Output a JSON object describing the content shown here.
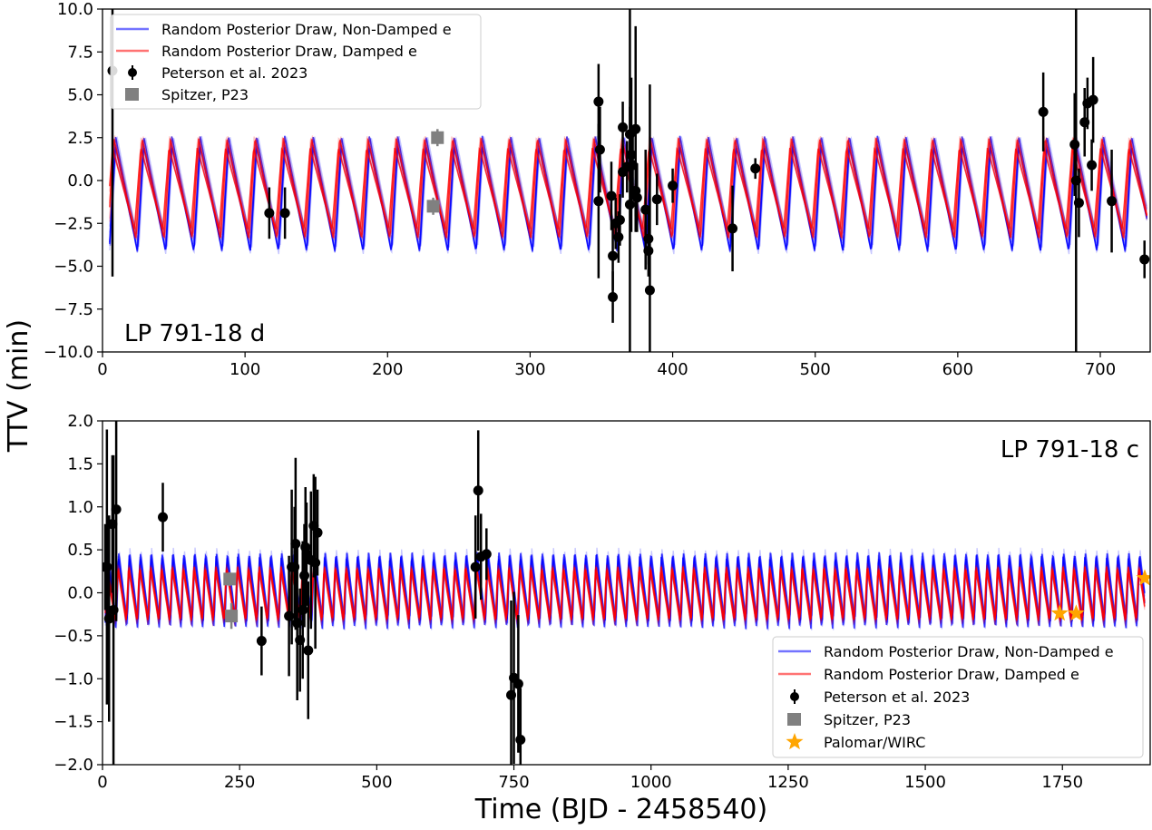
{
  "figure": {
    "ylabel": "TTV (min)",
    "xlabel": "Time (BJD - 2458540)"
  },
  "chart_data": [
    {
      "type": "scatter",
      "title": "LP 791-18 d",
      "xlabel": "",
      "ylabel": "TTV (min)",
      "xlim": [
        0,
        735
      ],
      "ylim": [
        -10,
        10
      ],
      "xticks": [
        0,
        100,
        200,
        300,
        400,
        500,
        600,
        700
      ],
      "yticks": [
        -10.0,
        -7.5,
        -5.0,
        -2.5,
        0.0,
        2.5,
        5.0,
        7.5,
        10.0
      ],
      "legend_position": "top-left",
      "legend": [
        {
          "label": "Random Posterior Draw, Non-Damped e",
          "kind": "line",
          "color": "#0000ff"
        },
        {
          "label": "Random Posterior Draw, Damped e",
          "kind": "line",
          "color": "#ff0000"
        },
        {
          "label": "Peterson et al. 2023",
          "kind": "errorbar",
          "color": "#000000"
        },
        {
          "label": "Spitzer, P23",
          "kind": "square",
          "color": "#808080"
        }
      ],
      "model": {
        "period": 19.8,
        "start": 5,
        "end": 733,
        "nondamped_amplitude": 2.9,
        "nondamped_offset": -0.9,
        "damped_amplitude": 2.6,
        "damped_offset": -0.4
      },
      "series": [
        {
          "name": "Peterson et al. 2023",
          "color": "#000000",
          "points": [
            [
              7,
              6.4,
              12
            ],
            [
              117,
              -1.9,
              1.5
            ],
            [
              128,
              -1.9,
              1.5
            ],
            [
              348,
              4.6,
              2.2
            ],
            [
              348,
              -1.2,
              4.5
            ],
            [
              349,
              1.8,
              2.5
            ],
            [
              357,
              -0.9,
              2.0
            ],
            [
              358,
              -4.4,
              2.0
            ],
            [
              358,
              -6.8,
              1.5
            ],
            [
              360,
              -2.5,
              1.5
            ],
            [
              362,
              -3.3,
              1.5
            ],
            [
              363,
              -2.3,
              1.5
            ],
            [
              365,
              3.1,
              1.5
            ],
            [
              365,
              0.5,
              1.5
            ],
            [
              368,
              0.8,
              1.5
            ],
            [
              370,
              2.7,
              1.6
            ],
            [
              370,
              -1.4,
              12
            ],
            [
              371,
              1.5,
              4.5
            ],
            [
              372,
              0.9,
              2.0
            ],
            [
              374,
              -0.6,
              1.5
            ],
            [
              374,
              3.0,
              6.0
            ],
            [
              375,
              -1.0,
              2.0
            ],
            [
              381,
              -1.7,
              3.5
            ],
            [
              383,
              -3.4,
              1.5
            ],
            [
              383,
              -4.1,
              1.5
            ],
            [
              384,
              -6.4,
              12
            ],
            [
              389,
              -1.1,
              1.5
            ],
            [
              400,
              -0.3,
              1.0
            ],
            [
              442,
              -2.8,
              2.5
            ],
            [
              458,
              0.7,
              0.6
            ],
            [
              660,
              4.0,
              2.3
            ],
            [
              682,
              2.1,
              3.0
            ],
            [
              683,
              0.0,
              12
            ],
            [
              685,
              -1.3,
              2.0
            ],
            [
              689,
              3.4,
              2.0
            ],
            [
              691,
              4.5,
              1.5
            ],
            [
              694,
              0.9,
              1.5
            ],
            [
              695,
              4.7,
              2.5
            ],
            [
              708,
              -1.2,
              3.0
            ],
            [
              731,
              -4.6,
              1.1
            ]
          ]
        },
        {
          "name": "Spitzer, P23",
          "color": "#808080",
          "points": [
            [
              232,
              -1.5,
              0.5
            ],
            [
              235,
              2.5,
              0.5
            ]
          ]
        }
      ]
    },
    {
      "type": "scatter",
      "title": "LP 791-18 c",
      "xlabel": "Time (BJD - 2458540)",
      "ylabel": "TTV (min)",
      "xlim": [
        0,
        1910
      ],
      "ylim": [
        -2.0,
        2.0
      ],
      "xticks": [
        0,
        250,
        500,
        750,
        1000,
        1250,
        1500,
        1750
      ],
      "yticks": [
        -2.0,
        -1.5,
        -1.0,
        -0.5,
        0.0,
        0.5,
        1.0,
        1.5,
        2.0
      ],
      "legend_position": "bottom-right",
      "legend": [
        {
          "label": "Random Posterior Draw, Non-Damped e",
          "kind": "line",
          "color": "#0000ff"
        },
        {
          "label": "Random Posterior Draw, Damped e",
          "kind": "line",
          "color": "#ff0000"
        },
        {
          "label": "Peterson et al. 2023",
          "kind": "errorbar",
          "color": "#000000"
        },
        {
          "label": "Spitzer, P23",
          "kind": "square",
          "color": "#808080"
        },
        {
          "label": "Palomar/WIRC",
          "kind": "star",
          "color": "#ffa500"
        }
      ],
      "model": {
        "period": 19.8,
        "start": 5,
        "end": 1900,
        "nondamped_amplitude": 0.42,
        "nondamped_offset": 0.05,
        "damped_amplitude": 0.3,
        "damped_offset": -0.02
      },
      "series": [
        {
          "name": "Peterson et al. 2023",
          "color": "#000000",
          "points": [
            [
              5,
              0.3,
              0.5
            ],
            [
              8,
              0.3,
              1.6
            ],
            [
              12,
              -0.3,
              1.2
            ],
            [
              18,
              0.8,
              0.8
            ],
            [
              20,
              -0.2,
              1.8
            ],
            [
              25,
              0.97,
              1.3
            ],
            [
              110,
              0.88,
              0.4
            ],
            [
              290,
              -0.56,
              0.4
            ],
            [
              340,
              -0.27,
              0.7
            ],
            [
              345,
              0.3,
              0.9
            ],
            [
              350,
              0.3,
              0.7
            ],
            [
              352,
              0.57,
              1.0
            ],
            [
              355,
              -0.35,
              0.9
            ],
            [
              360,
              -0.55,
              0.6
            ],
            [
              365,
              -0.2,
              0.8
            ],
            [
              368,
              0.2,
              0.6
            ],
            [
              370,
              0.53,
              0.7
            ],
            [
              372,
              0.45,
              0.6
            ],
            [
              375,
              -0.67,
              0.8
            ],
            [
              380,
              0.38,
              0.8
            ],
            [
              385,
              0.78,
              0.6
            ],
            [
              388,
              0.35,
              1.0
            ],
            [
              392,
              0.7,
              0.5
            ],
            [
              680,
              0.3,
              0.6
            ],
            [
              685,
              1.19,
              0.7
            ],
            [
              690,
              0.42,
              0.5
            ],
            [
              700,
              0.45,
              0.3
            ],
            [
              745,
              -1.19,
              1.1
            ],
            [
              750,
              -0.99,
              1.0
            ],
            [
              758,
              -1.06,
              0.8
            ],
            [
              762,
              -1.71,
              0.6
            ]
          ]
        },
        {
          "name": "Spitzer, P23",
          "color": "#808080",
          "points": [
            [
              232,
              0.16,
              0.08
            ],
            [
              235,
              -0.27,
              0.15
            ]
          ]
        },
        {
          "name": "Palomar/WIRC",
          "color": "#ffa500",
          "points": [
            [
              1745,
              -0.24,
              0.03
            ],
            [
              1775,
              -0.24,
              0.03
            ],
            [
              1900,
              0.17,
              0.03
            ]
          ]
        }
      ]
    }
  ]
}
